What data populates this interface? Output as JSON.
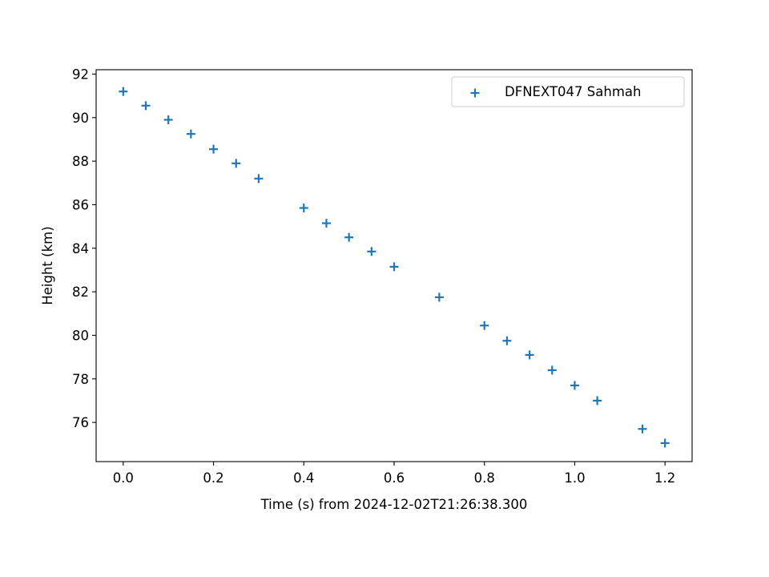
{
  "chart_data": {
    "type": "scatter",
    "title": "",
    "xlabel": "Time (s) from 2024-12-02T21:26:38.300",
    "ylabel": "Height (km)",
    "xlim": [
      -0.06,
      1.26
    ],
    "ylim": [
      74.2,
      92.2
    ],
    "xticks": [
      0.0,
      0.2,
      0.4,
      0.6,
      0.8,
      1.0,
      1.2
    ],
    "xtick_labels": [
      "0.0",
      "0.2",
      "0.4",
      "0.6",
      "0.8",
      "1.0",
      "1.2"
    ],
    "yticks": [
      76,
      78,
      80,
      82,
      84,
      86,
      88,
      90,
      92
    ],
    "ytick_labels": [
      "76",
      "78",
      "80",
      "82",
      "84",
      "86",
      "88",
      "90",
      "92"
    ],
    "grid": false,
    "legend": "top-right",
    "marker": "+",
    "series": [
      {
        "name": "DFNEXT047 Sahmah",
        "color": "#1f77b4",
        "x": [
          0.0,
          0.05,
          0.1,
          0.15,
          0.2,
          0.25,
          0.3,
          0.4,
          0.45,
          0.5,
          0.55,
          0.6,
          0.7,
          0.8,
          0.85,
          0.9,
          0.95,
          1.0,
          1.05,
          1.15,
          1.2
        ],
        "y": [
          91.2,
          90.55,
          89.9,
          89.25,
          88.55,
          87.9,
          87.2,
          85.85,
          85.15,
          84.5,
          83.85,
          83.15,
          81.75,
          80.45,
          79.75,
          79.1,
          78.4,
          77.7,
          77.0,
          75.7,
          75.05
        ]
      }
    ]
  }
}
